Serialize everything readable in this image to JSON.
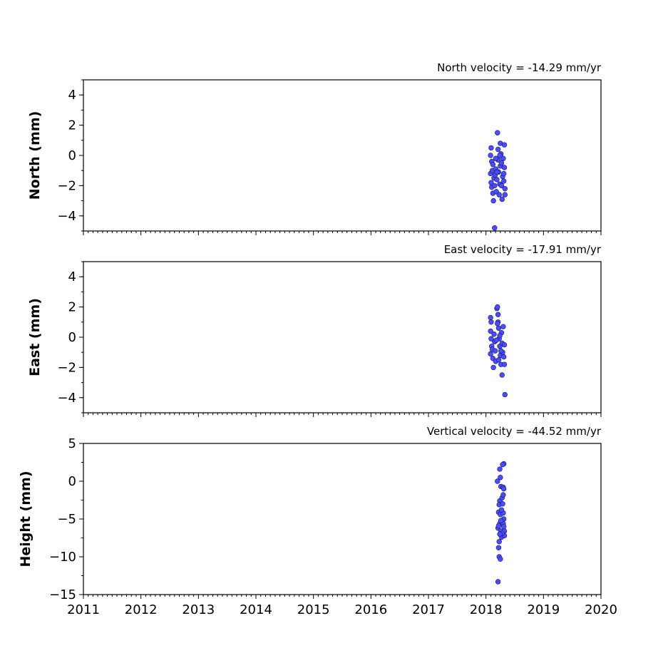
{
  "chart_data": [
    {
      "type": "scatter",
      "title": "North velocity = -14.29 mm/yr",
      "ylabel": "North (mm)",
      "xlim": [
        2011,
        2020
      ],
      "ylim": [
        -5,
        5
      ],
      "yticks": [
        -4,
        -2,
        0,
        2,
        4
      ],
      "marker_color": "#4b4bff",
      "points": [
        [
          2018.08,
          0.0
        ],
        [
          2018.09,
          0.5
        ],
        [
          2018.1,
          -0.4
        ],
        [
          2018.08,
          -1.2
        ],
        [
          2018.09,
          -1.8
        ],
        [
          2018.1,
          -2.1
        ],
        [
          2018.12,
          -2.5
        ],
        [
          2018.13,
          -3.0
        ],
        [
          2018.11,
          -1.0
        ],
        [
          2018.12,
          -0.6
        ],
        [
          2018.14,
          -1.5
        ],
        [
          2018.15,
          -2.0
        ],
        [
          2018.16,
          -1.3
        ],
        [
          2018.17,
          -0.9
        ],
        [
          2018.18,
          -2.4
        ],
        [
          2018.19,
          -1.6
        ],
        [
          2018.2,
          1.5
        ],
        [
          2018.21,
          0.4
        ],
        [
          2018.21,
          -0.3
        ],
        [
          2018.22,
          -1.1
        ],
        [
          2018.23,
          -2.6
        ],
        [
          2018.24,
          -1.9
        ],
        [
          2018.25,
          -0.7
        ],
        [
          2018.25,
          0.8
        ],
        [
          2018.26,
          0.1
        ],
        [
          2018.27,
          -0.5
        ],
        [
          2018.28,
          -2.9
        ],
        [
          2018.29,
          -1.4
        ],
        [
          2018.3,
          -0.2
        ],
        [
          2018.31,
          -1.2
        ],
        [
          2018.32,
          0.7
        ],
        [
          2018.33,
          -2.2
        ],
        [
          2018.33,
          -2.6
        ],
        [
          2018.32,
          -0.8
        ],
        [
          2018.31,
          -1.7
        ],
        [
          2018.15,
          -4.8
        ],
        [
          2018.17,
          -0.2
        ],
        [
          2018.19,
          -1.1
        ],
        [
          2018.24,
          0.0
        ],
        [
          2018.27,
          -2.0
        ]
      ]
    },
    {
      "type": "scatter",
      "title": "East velocity = -17.91 mm/yr",
      "ylabel": "East (mm)",
      "xlim": [
        2011,
        2020
      ],
      "ylim": [
        -5,
        5
      ],
      "yticks": [
        -4,
        -2,
        0,
        2,
        4
      ],
      "marker_color": "#4b4bff",
      "points": [
        [
          2018.08,
          1.3
        ],
        [
          2018.09,
          1.0
        ],
        [
          2018.08,
          0.4
        ],
        [
          2018.09,
          -0.1
        ],
        [
          2018.1,
          -0.6
        ],
        [
          2018.08,
          -1.1
        ],
        [
          2018.11,
          -0.8
        ],
        [
          2018.12,
          -1.4
        ],
        [
          2018.13,
          -2.0
        ],
        [
          2018.14,
          0.2
        ],
        [
          2018.15,
          -0.3
        ],
        [
          2018.16,
          -0.9
        ],
        [
          2018.17,
          -1.6
        ],
        [
          2018.19,
          1.9
        ],
        [
          2018.2,
          2.0
        ],
        [
          2018.21,
          1.5
        ],
        [
          2018.21,
          1.0
        ],
        [
          2018.22,
          0.6
        ],
        [
          2018.23,
          -0.1
        ],
        [
          2018.24,
          -0.6
        ],
        [
          2018.25,
          -1.2
        ],
        [
          2018.26,
          -1.8
        ],
        [
          2018.27,
          0.3
        ],
        [
          2018.28,
          -0.4
        ],
        [
          2018.29,
          -1.0
        ],
        [
          2018.3,
          0.7
        ],
        [
          2018.31,
          -1.3
        ],
        [
          2018.32,
          -1.8
        ],
        [
          2018.32,
          -0.5
        ],
        [
          2018.28,
          -2.5
        ],
        [
          2018.33,
          -3.8
        ],
        [
          2018.2,
          0.9
        ],
        [
          2018.24,
          0.1
        ],
        [
          2018.18,
          -0.2
        ],
        [
          2018.26,
          -0.9
        ],
        [
          2018.22,
          -1.5
        ]
      ]
    },
    {
      "type": "scatter",
      "title": "Vertical velocity = -44.52 mm/yr",
      "ylabel": "Height (mm)",
      "xlim": [
        2011,
        2020
      ],
      "ylim": [
        -15,
        5
      ],
      "yticks": [
        -15,
        -10,
        -5,
        0,
        5
      ],
      "marker_color": "#4b4bff",
      "points": [
        [
          2018.2,
          0.0
        ],
        [
          2018.22,
          -4.1
        ],
        [
          2018.21,
          -6.2
        ],
        [
          2018.23,
          -8.0
        ],
        [
          2018.22,
          -8.8
        ],
        [
          2018.21,
          -13.3
        ],
        [
          2018.23,
          -10.0
        ],
        [
          2018.25,
          -10.3
        ],
        [
          2018.24,
          1.6
        ],
        [
          2018.25,
          0.5
        ],
        [
          2018.26,
          -0.7
        ],
        [
          2018.24,
          -2.6
        ],
        [
          2018.23,
          -3.1
        ],
        [
          2018.25,
          -4.4
        ],
        [
          2018.24,
          -5.6
        ],
        [
          2018.26,
          -6.6
        ],
        [
          2018.27,
          -7.4
        ],
        [
          2018.28,
          -2.2
        ],
        [
          2018.29,
          -3.0
        ],
        [
          2018.3,
          -1.8
        ],
        [
          2018.31,
          2.3
        ],
        [
          2018.29,
          2.2
        ],
        [
          2018.3,
          -0.8
        ],
        [
          2018.31,
          -1.0
        ],
        [
          2018.3,
          -4.2
        ],
        [
          2018.31,
          -5.0
        ],
        [
          2018.3,
          -5.6
        ],
        [
          2018.31,
          -6.0
        ],
        [
          2018.32,
          -6.6
        ],
        [
          2018.32,
          -7.2
        ],
        [
          2018.27,
          -3.8
        ],
        [
          2018.26,
          -5.2
        ],
        [
          2018.28,
          -6.9
        ],
        [
          2018.24,
          -7.0
        ],
        [
          2018.22,
          -5.9
        ]
      ]
    }
  ]
}
